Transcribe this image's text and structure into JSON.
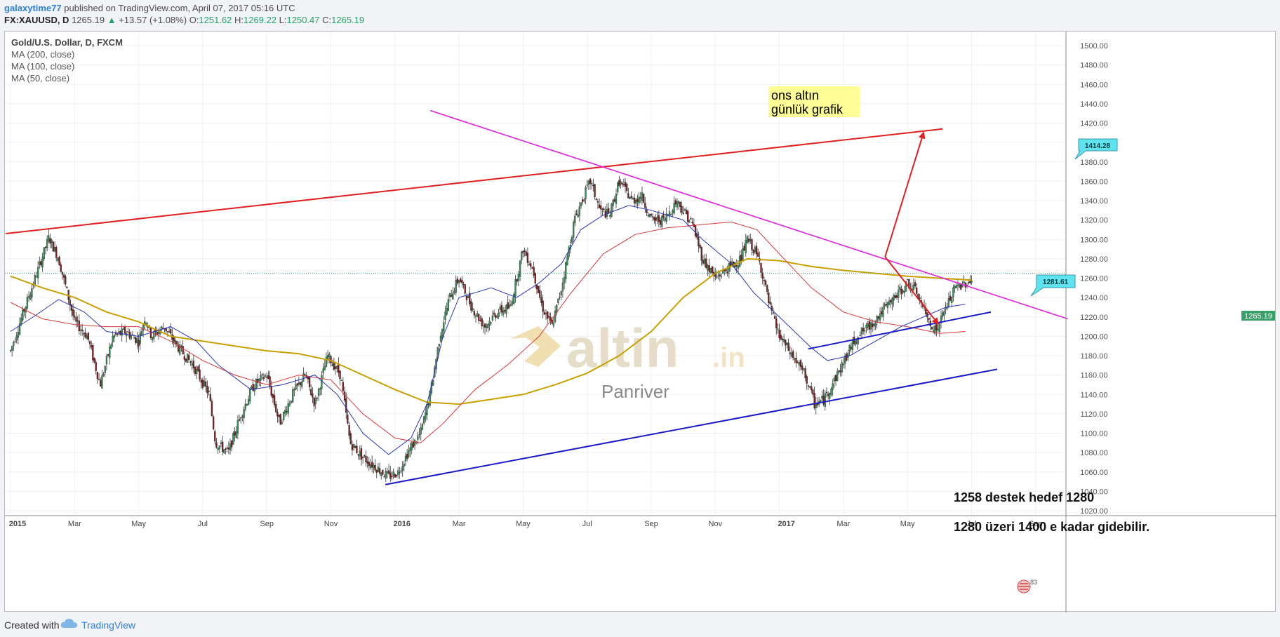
{
  "header": {
    "author": "galaxytime77",
    "published": "published on TradingView.com, April 07, 2017 05:16 UTC",
    "symbol": "FX:XAUUSD, D",
    "last": "1265.19",
    "change": "+13.57 (+1.08%)",
    "open_label": "O:",
    "open": "1251.62",
    "high_label": "H:",
    "high": "1269.22",
    "low_label": "L:",
    "low": "1250.47",
    "close_label": "C:",
    "close": "1265.19"
  },
  "legend": {
    "title": "Gold/U.S. Dollar, D, FXCM",
    "ma200": "MA (200, close)",
    "ma100": "MA (100, close)",
    "ma50": "MA (50, close)"
  },
  "footer": {
    "created_with": "Created with",
    "brand": "TradingView"
  },
  "colors": {
    "up": "#3c8a5a",
    "down": "#7a1f1f",
    "ma200": "#c8a000",
    "ma100": "#d83a3a",
    "ma50": "#2a36b8",
    "resistance": "#e02020",
    "triangle": "#e020e0",
    "support": "#1a1ac8",
    "label_bg": "#5fe3ee",
    "note_bg": "#fdfd96"
  },
  "chart_data": {
    "type": "candlestick",
    "title": "Gold/U.S. Dollar, D, FXCM",
    "x_ticks": [
      "2015",
      "Mar",
      "May",
      "Jul",
      "Sep",
      "Nov",
      "2016",
      "Mar",
      "May",
      "Jul",
      "Sep",
      "Nov",
      "2017",
      "Mar",
      "May",
      "Jul",
      "Sep"
    ],
    "y_ticks": [
      1020.0,
      1040.0,
      1060.0,
      1080.0,
      1100.0,
      1120.0,
      1140.0,
      1160.0,
      1180.0,
      1200.0,
      1220.0,
      1240.0,
      1260.0,
      1280.0,
      1300.0,
      1320.0,
      1340.0,
      1360.0,
      1380.0,
      1400.0,
      1420.0,
      1440.0,
      1460.0,
      1480.0,
      1500.0
    ],
    "ylim": [
      1013,
      1510
    ],
    "last_price": 1265.19,
    "price_path": [
      [
        0,
        1185
      ],
      [
        0.3,
        1215
      ],
      [
        1.2,
        1302
      ],
      [
        1.5,
        1280
      ],
      [
        2.0,
        1215
      ],
      [
        2.4,
        1200
      ],
      [
        2.8,
        1150
      ],
      [
        3.2,
        1200
      ],
      [
        3.6,
        1205
      ],
      [
        4.0,
        1195
      ],
      [
        4.2,
        1220
      ],
      [
        4.4,
        1200
      ],
      [
        4.8,
        1210
      ],
      [
        5.2,
        1190
      ],
      [
        5.7,
        1170
      ],
      [
        6.2,
        1140
      ],
      [
        6.4,
        1090
      ],
      [
        6.8,
        1080
      ],
      [
        7.2,
        1120
      ],
      [
        7.6,
        1150
      ],
      [
        8.0,
        1160
      ],
      [
        8.4,
        1110
      ],
      [
        8.8,
        1140
      ],
      [
        9.2,
        1160
      ],
      [
        9.5,
        1130
      ],
      [
        9.9,
        1180
      ],
      [
        10.3,
        1160
      ],
      [
        10.6,
        1090
      ],
      [
        11.0,
        1075
      ],
      [
        11.4,
        1065
      ],
      [
        11.8,
        1055
      ],
      [
        12.1,
        1060
      ],
      [
        12.4,
        1080
      ],
      [
        12.8,
        1100
      ],
      [
        13.1,
        1140
      ],
      [
        13.4,
        1200
      ],
      [
        13.7,
        1240
      ],
      [
        14.0,
        1260
      ],
      [
        14.4,
        1230
      ],
      [
        14.8,
        1210
      ],
      [
        15.2,
        1225
      ],
      [
        15.6,
        1230
      ],
      [
        16.0,
        1290
      ],
      [
        16.3,
        1270
      ],
      [
        16.6,
        1230
      ],
      [
        16.9,
        1210
      ],
      [
        17.2,
        1250
      ],
      [
        17.6,
        1320
      ],
      [
        17.9,
        1345
      ],
      [
        18.1,
        1360
      ],
      [
        18.4,
        1330
      ],
      [
        18.7,
        1325
      ],
      [
        19.0,
        1360
      ],
      [
        19.4,
        1340
      ],
      [
        19.7,
        1345
      ],
      [
        20.0,
        1320
      ],
      [
        20.4,
        1320
      ],
      [
        20.8,
        1340
      ],
      [
        21.0,
        1330
      ],
      [
        21.3,
        1315
      ],
      [
        21.6,
        1280
      ],
      [
        22.0,
        1260
      ],
      [
        22.4,
        1270
      ],
      [
        22.8,
        1280
      ],
      [
        23.0,
        1300
      ],
      [
        23.2,
        1290
      ],
      [
        23.4,
        1275
      ],
      [
        23.7,
        1230
      ],
      [
        24.0,
        1200
      ],
      [
        24.4,
        1180
      ],
      [
        24.8,
        1160
      ],
      [
        25.1,
        1130
      ],
      [
        25.4,
        1135
      ],
      [
        25.8,
        1160
      ],
      [
        26.1,
        1180
      ],
      [
        26.4,
        1200
      ],
      [
        26.8,
        1210
      ],
      [
        27.2,
        1225
      ],
      [
        27.6,
        1240
      ],
      [
        28.0,
        1255
      ],
      [
        28.3,
        1245
      ],
      [
        28.6,
        1220
      ],
      [
        28.9,
        1205
      ],
      [
        29.2,
        1230
      ],
      [
        29.5,
        1250
      ],
      [
        29.8,
        1255
      ],
      [
        30.0,
        1258
      ]
    ],
    "ma200": [
      [
        0,
        1262
      ],
      [
        1.0,
        1250
      ],
      [
        2.0,
        1240
      ],
      [
        3.0,
        1225
      ],
      [
        4.0,
        1215
      ],
      [
        5.0,
        1200
      ],
      [
        6.0,
        1195
      ],
      [
        7.0,
        1190
      ],
      [
        8.0,
        1185
      ],
      [
        9.0,
        1182
      ],
      [
        10.0,
        1175
      ],
      [
        11.0,
        1160
      ],
      [
        12.0,
        1145
      ],
      [
        13.0,
        1132
      ],
      [
        14.0,
        1130
      ],
      [
        15.0,
        1135
      ],
      [
        16.0,
        1140
      ],
      [
        17.0,
        1150
      ],
      [
        18.0,
        1162
      ],
      [
        19.0,
        1180
      ],
      [
        20.0,
        1205
      ],
      [
        21.0,
        1240
      ],
      [
        22.0,
        1265
      ],
      [
        23.0,
        1280
      ],
      [
        24.0,
        1278
      ],
      [
        25.0,
        1272
      ],
      [
        26.0,
        1268
      ],
      [
        27.0,
        1265
      ],
      [
        28.0,
        1262
      ],
      [
        29.0,
        1260
      ],
      [
        30.0,
        1258
      ]
    ],
    "ma100": [
      [
        0,
        1235
      ],
      [
        1.0,
        1218
      ],
      [
        2.0,
        1212
      ],
      [
        3.0,
        1210
      ],
      [
        4.0,
        1210
      ],
      [
        5.0,
        1195
      ],
      [
        6.0,
        1175
      ],
      [
        7.0,
        1160
      ],
      [
        8.0,
        1150
      ],
      [
        9.0,
        1160
      ],
      [
        10.0,
        1155
      ],
      [
        11.0,
        1120
      ],
      [
        12.0,
        1095
      ],
      [
        12.8,
        1090
      ],
      [
        13.5,
        1110
      ],
      [
        14.5,
        1145
      ],
      [
        15.5,
        1170
      ],
      [
        16.5,
        1200
      ],
      [
        17.5,
        1245
      ],
      [
        18.5,
        1285
      ],
      [
        19.5,
        1305
      ],
      [
        20.5,
        1312
      ],
      [
        21.5,
        1315
      ],
      [
        22.5,
        1318
      ],
      [
        23.3,
        1310
      ],
      [
        24.0,
        1285
      ],
      [
        25.0,
        1250
      ],
      [
        26.0,
        1225
      ],
      [
        27.0,
        1215
      ],
      [
        28.0,
        1210
      ],
      [
        29.0,
        1203
      ],
      [
        29.8,
        1205
      ]
    ],
    "ma50": [
      [
        0,
        1205
      ],
      [
        0.8,
        1222
      ],
      [
        1.5,
        1238
      ],
      [
        2.3,
        1225
      ],
      [
        3.0,
        1205
      ],
      [
        4.0,
        1200
      ],
      [
        5.0,
        1210
      ],
      [
        5.8,
        1195
      ],
      [
        6.5,
        1170
      ],
      [
        7.5,
        1145
      ],
      [
        8.5,
        1150
      ],
      [
        9.5,
        1160
      ],
      [
        10.2,
        1140
      ],
      [
        11.0,
        1100
      ],
      [
        11.8,
        1078
      ],
      [
        12.5,
        1095
      ],
      [
        13.0,
        1130
      ],
      [
        13.5,
        1200
      ],
      [
        14.0,
        1240
      ],
      [
        15.0,
        1250
      ],
      [
        15.8,
        1240
      ],
      [
        16.5,
        1255
      ],
      [
        17.2,
        1275
      ],
      [
        17.8,
        1310
      ],
      [
        18.5,
        1325
      ],
      [
        19.3,
        1335
      ],
      [
        20.0,
        1330
      ],
      [
        21.0,
        1320
      ],
      [
        21.6,
        1300
      ],
      [
        22.5,
        1275
      ],
      [
        23.2,
        1245
      ],
      [
        24.0,
        1220
      ],
      [
        25.0,
        1188
      ],
      [
        25.5,
        1175
      ],
      [
        26.2,
        1180
      ],
      [
        27.0,
        1195
      ],
      [
        27.8,
        1210
      ],
      [
        28.5,
        1220
      ],
      [
        29.2,
        1230
      ],
      [
        29.8,
        1233
      ]
    ]
  },
  "drawings": {
    "label_high": "1414.28",
    "label_mid": "1281.61",
    "price_tag": "1265.19",
    "note_title_1": "ons altın",
    "note_title_2": "günlük grafik",
    "note_1": "1258 destek hedef 1280",
    "note_2": "1280 üzeri 1400 e kadar gidebilir.",
    "watermark": "altin",
    "watermark_suffix": ".in",
    "watermark_sub": "Panriver",
    "badge": "83"
  }
}
